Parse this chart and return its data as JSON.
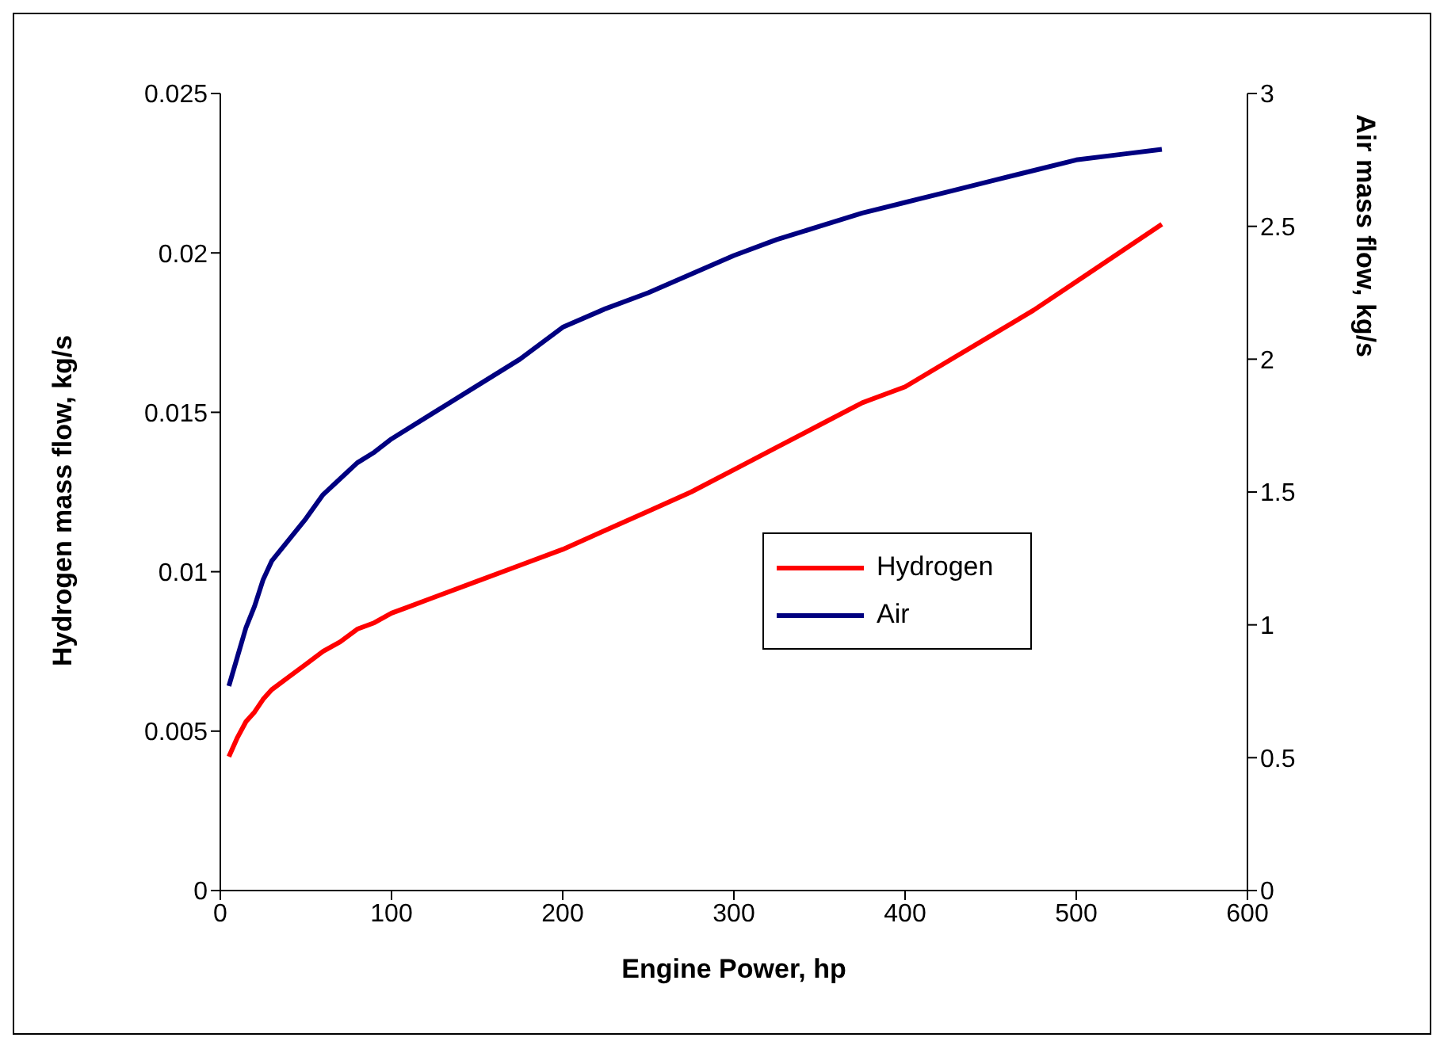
{
  "chart_data": {
    "type": "line",
    "xlabel": "Engine Power, hp",
    "ylabel": "Hydrogen mass flow, kg/s",
    "y2label": "Air mass flow, kg/s",
    "x": [
      5,
      10,
      15,
      20,
      25,
      30,
      40,
      50,
      60,
      70,
      80,
      90,
      100,
      125,
      150,
      175,
      200,
      225,
      250,
      275,
      300,
      325,
      350,
      375,
      400,
      425,
      450,
      475,
      500,
      525,
      550
    ],
    "series": [
      {
        "name": "Hydrogen",
        "color": "#ff0000",
        "values": [
          0.0042,
          0.0048,
          0.0053,
          0.0056,
          0.006,
          0.0063,
          0.0067,
          0.0071,
          0.0075,
          0.0078,
          0.0082,
          0.0084,
          0.0087,
          0.0092,
          0.0097,
          0.0102,
          0.0107,
          0.0113,
          0.0119,
          0.0125,
          0.0132,
          0.0139,
          0.0146,
          0.0153,
          0.0158,
          0.0166,
          0.0174,
          0.0182,
          0.0191,
          0.02,
          0.0209
        ]
      },
      {
        "name": "Air",
        "color": "#000080",
        "axis": "y2",
        "values": [
          0.77,
          0.88,
          0.99,
          1.07,
          1.17,
          1.24,
          1.32,
          1.4,
          1.49,
          1.55,
          1.61,
          1.65,
          1.7,
          1.8,
          1.9,
          2.0,
          2.12,
          2.19,
          2.25,
          2.32,
          2.39,
          2.45,
          2.5,
          2.55,
          2.59,
          2.63,
          2.67,
          2.71,
          2.75,
          2.77,
          2.79
        ]
      }
    ],
    "xlim": [
      0,
      600
    ],
    "xticks": [
      0,
      100,
      200,
      300,
      400,
      500,
      600
    ],
    "ylim": [
      0,
      0.025
    ],
    "yticks": [
      0,
      0.005,
      0.01,
      0.015,
      0.02,
      0.025
    ],
    "y2lim": [
      0,
      3
    ],
    "y2ticks": [
      0,
      0.5,
      1,
      1.5,
      2,
      2.5,
      3
    ],
    "legend": "right",
    "grid": false,
    "marker": "none",
    "line_style": "solid"
  }
}
